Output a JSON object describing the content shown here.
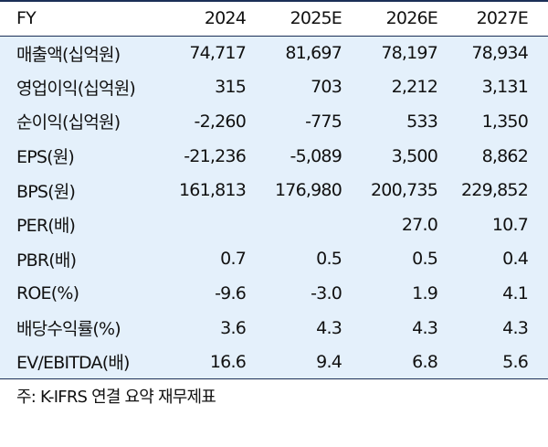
{
  "table": {
    "columns": [
      "FY",
      "2024",
      "2025E",
      "2026E",
      "2027E"
    ],
    "rows": [
      {
        "label": "매출액(십억원)",
        "values": [
          "74,717",
          "81,697",
          "78,197",
          "78,934"
        ]
      },
      {
        "label": "영업이익(십억원)",
        "values": [
          "315",
          "703",
          "2,212",
          "3,131"
        ]
      },
      {
        "label": "순이익(십억원)",
        "values": [
          "-2,260",
          "-775",
          "533",
          "1,350"
        ]
      },
      {
        "label": "EPS(원)",
        "values": [
          "-21,236",
          "-5,089",
          "3,500",
          "8,862"
        ]
      },
      {
        "label": "BPS(원)",
        "values": [
          "161,813",
          "176,980",
          "200,735",
          "229,852"
        ]
      },
      {
        "label": "PER(배)",
        "values": [
          "",
          "",
          "27.0",
          "10.7"
        ]
      },
      {
        "label": "PBR(배)",
        "values": [
          "0.7",
          "0.5",
          "0.5",
          "0.4"
        ]
      },
      {
        "label": "ROE(%)",
        "values": [
          "-9.6",
          "-3.0",
          "1.9",
          "4.1"
        ]
      },
      {
        "label": "배당수익률(%)",
        "values": [
          "3.6",
          "4.3",
          "4.3",
          "4.3"
        ]
      },
      {
        "label": "EV/EBITDA(배)",
        "values": [
          "16.6",
          "9.4",
          "6.8",
          "5.6"
        ]
      }
    ]
  },
  "footnote": "주: K-IFRS 연결 요약 재무제표",
  "colors": {
    "row_background": "#e4f0fb",
    "rule": "#1b2f57"
  }
}
